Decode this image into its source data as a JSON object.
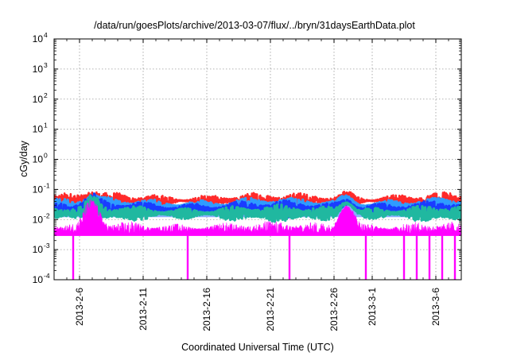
{
  "chart_data": {
    "type": "line",
    "title": "/data/run/goesPlots/archive/2013-03-07/flux/../bryn/31daysEarthData.plot",
    "xlabel": "Coordinated Universal Time (UTC)",
    "ylabel": "cGy/day",
    "yscale": "log",
    "ylim": [
      0.0001,
      10000
    ],
    "xlim": [
      "2013-02-04",
      "2013-03-08"
    ],
    "grid": true,
    "y_ticks": [
      {
        "value": 0.0001,
        "label": "10",
        "exp": "-4"
      },
      {
        "value": 0.001,
        "label": "10",
        "exp": "-3"
      },
      {
        "value": 0.01,
        "label": "10",
        "exp": "-2"
      },
      {
        "value": 0.1,
        "label": "10",
        "exp": "-1"
      },
      {
        "value": 1,
        "label": "10",
        "exp": "0"
      },
      {
        "value": 10,
        "label": "10",
        "exp": "1"
      },
      {
        "value": 100,
        "label": "10",
        "exp": "2"
      },
      {
        "value": 1000,
        "label": "10",
        "exp": "3"
      },
      {
        "value": 10000,
        "label": "10",
        "exp": "4"
      }
    ],
    "x_ticks": [
      {
        "value": "2013-02-06",
        "label": "2013-2-6"
      },
      {
        "value": "2013-02-11",
        "label": "2013-2-11"
      },
      {
        "value": "2013-02-16",
        "label": "2013-2-16"
      },
      {
        "value": "2013-02-21",
        "label": "2013-2-21"
      },
      {
        "value": "2013-02-26",
        "label": "2013-2-26"
      },
      {
        "value": "2013-03-01",
        "label": "2013-3-1"
      },
      {
        "value": "2013-03-06",
        "label": "2013-3-6"
      }
    ],
    "series": [
      {
        "color": "#ff2a2a",
        "baseline": 0.042
      },
      {
        "color": "#2f9cff",
        "baseline": 0.028
      },
      {
        "color": "#1a3cff",
        "baseline": 0.022
      },
      {
        "color": "#20b8a0",
        "baseline": 0.016
      },
      {
        "color": "#ff00ff",
        "baseline": 0.0048,
        "floor": 0.0029,
        "min_dips": [
          "2013-02-05",
          "2013-02-14",
          "2013-02-22",
          "2013-02-28",
          "2013-03-03",
          "2013-03-04",
          "2013-03-05",
          "2013-03-06",
          "2013-03-07"
        ]
      }
    ],
    "peaks": [
      {
        "x": "2013-02-07",
        "y": 0.09
      },
      {
        "x": "2013-02-27",
        "y": 0.085
      }
    ]
  }
}
